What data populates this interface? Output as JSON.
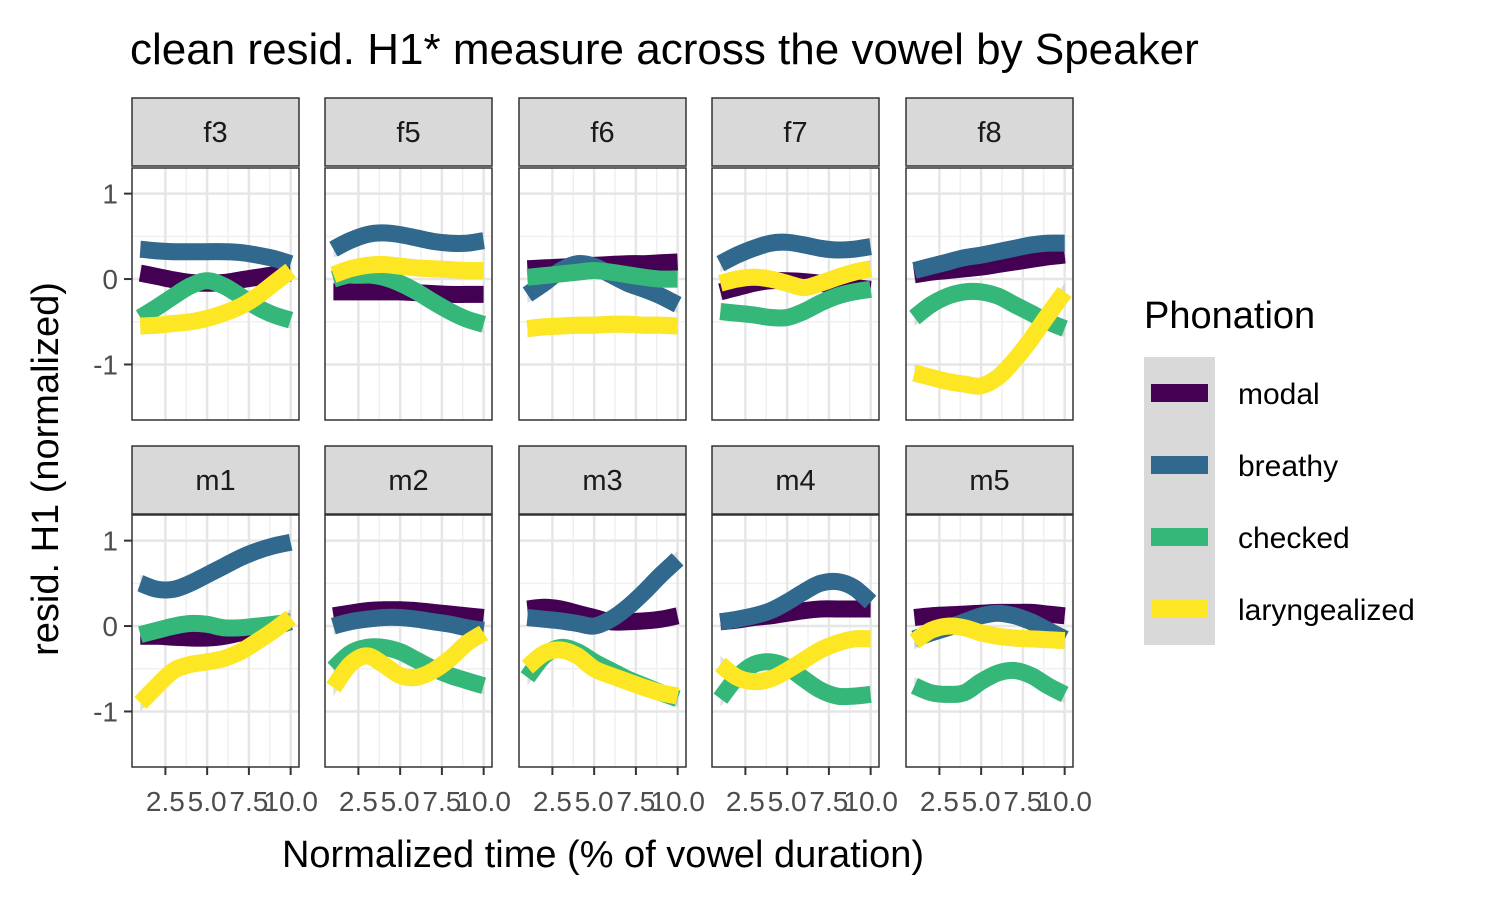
{
  "chart_data": {
    "type": "line",
    "title": "clean resid. H1* measure across the vowel by Speaker",
    "xlabel": "Normalized time (% of vowel duration)",
    "ylabel": "resid. H1 (normalized)",
    "xlim": [
      0.5,
      10.5
    ],
    "ylim": [
      -1.65,
      1.3
    ],
    "x_ticks": [
      2.5,
      5.0,
      7.5,
      10.0
    ],
    "x_tick_labels": [
      "2.5",
      "5.0",
      "7.5",
      "10.0"
    ],
    "y_ticks": [
      -1,
      0,
      1
    ],
    "y_tick_labels": [
      "-1",
      "0",
      "1"
    ],
    "grid": true,
    "legend": {
      "title": "Phonation",
      "position": "right",
      "entries": [
        {
          "key": "modal",
          "label": "modal",
          "color": "#440154"
        },
        {
          "key": "breathy",
          "label": "breathy",
          "color": "#31688E"
        },
        {
          "key": "checked",
          "label": "checked",
          "color": "#35B779"
        },
        {
          "key": "laryngealized",
          "label": "laryngealized",
          "color": "#FDE725"
        }
      ]
    },
    "x": [
      1,
      2,
      3,
      4,
      5,
      6,
      7,
      8,
      9,
      10
    ],
    "panels": [
      {
        "speaker": "f3",
        "series": [
          {
            "name": "modal",
            "values": [
              0.07,
              0.03,
              -0.01,
              -0.04,
              -0.05,
              -0.04,
              -0.01,
              0.02,
              0.05,
              0.07
            ]
          },
          {
            "name": "breathy",
            "values": [
              0.35,
              0.33,
              0.32,
              0.32,
              0.32,
              0.32,
              0.31,
              0.28,
              0.24,
              0.18
            ]
          },
          {
            "name": "checked",
            "values": [
              -0.45,
              -0.33,
              -0.2,
              -0.08,
              -0.02,
              -0.08,
              -0.2,
              -0.33,
              -0.42,
              -0.48
            ]
          },
          {
            "name": "laryngealized",
            "values": [
              -0.55,
              -0.54,
              -0.52,
              -0.5,
              -0.46,
              -0.4,
              -0.32,
              -0.2,
              -0.05,
              0.1
            ]
          }
        ]
      },
      {
        "speaker": "f5",
        "series": [
          {
            "name": "modal",
            "values": [
              -0.15,
              -0.15,
              -0.15,
              -0.15,
              -0.15,
              -0.16,
              -0.17,
              -0.18,
              -0.18,
              -0.18
            ]
          },
          {
            "name": "breathy",
            "values": [
              0.35,
              0.45,
              0.52,
              0.54,
              0.52,
              0.48,
              0.44,
              0.42,
              0.42,
              0.45
            ]
          },
          {
            "name": "checked",
            "values": [
              0.0,
              0.05,
              0.05,
              0.02,
              -0.05,
              -0.15,
              -0.27,
              -0.38,
              -0.47,
              -0.53
            ]
          },
          {
            "name": "laryngealized",
            "values": [
              0.05,
              0.12,
              0.16,
              0.17,
              0.15,
              0.13,
              0.12,
              0.11,
              0.1,
              0.1
            ]
          }
        ]
      },
      {
        "speaker": "f6",
        "series": [
          {
            "name": "modal",
            "values": [
              0.12,
              0.13,
              0.14,
              0.15,
              0.16,
              0.17,
              0.18,
              0.18,
              0.19,
              0.2
            ]
          },
          {
            "name": "breathy",
            "values": [
              -0.18,
              -0.05,
              0.1,
              0.18,
              0.15,
              0.05,
              -0.05,
              -0.12,
              -0.2,
              -0.3
            ]
          },
          {
            "name": "checked",
            "values": [
              0.02,
              0.04,
              0.06,
              0.08,
              0.1,
              0.08,
              0.05,
              0.02,
              0.0,
              0.0
            ]
          },
          {
            "name": "laryngealized",
            "values": [
              -0.58,
              -0.56,
              -0.55,
              -0.54,
              -0.54,
              -0.53,
              -0.53,
              -0.54,
              -0.54,
              -0.55
            ]
          }
        ]
      },
      {
        "speaker": "f7",
        "series": [
          {
            "name": "modal",
            "values": [
              -0.15,
              -0.1,
              -0.05,
              -0.02,
              -0.02,
              -0.03,
              -0.05,
              -0.08,
              -0.1,
              -0.12
            ]
          },
          {
            "name": "breathy",
            "values": [
              0.18,
              0.28,
              0.36,
              0.42,
              0.43,
              0.4,
              0.36,
              0.34,
              0.35,
              0.38
            ]
          },
          {
            "name": "checked",
            "values": [
              -0.38,
              -0.4,
              -0.42,
              -0.45,
              -0.45,
              -0.38,
              -0.28,
              -0.2,
              -0.15,
              -0.12
            ]
          },
          {
            "name": "laryngealized",
            "values": [
              -0.05,
              0.0,
              0.02,
              0.0,
              -0.05,
              -0.1,
              -0.05,
              0.02,
              0.08,
              0.12
            ]
          }
        ]
      },
      {
        "speaker": "f8",
        "series": [
          {
            "name": "modal",
            "values": [
              0.05,
              0.08,
              0.1,
              0.12,
              0.14,
              0.17,
              0.2,
              0.23,
              0.26,
              0.28
            ]
          },
          {
            "name": "breathy",
            "values": [
              0.1,
              0.15,
              0.2,
              0.25,
              0.28,
              0.32,
              0.36,
              0.4,
              0.42,
              0.42
            ]
          },
          {
            "name": "checked",
            "values": [
              -0.45,
              -0.3,
              -0.2,
              -0.15,
              -0.15,
              -0.2,
              -0.3,
              -0.4,
              -0.5,
              -0.58
            ]
          },
          {
            "name": "laryngealized",
            "values": [
              -1.1,
              -1.15,
              -1.2,
              -1.23,
              -1.25,
              -1.15,
              -0.95,
              -0.7,
              -0.42,
              -0.15
            ]
          }
        ]
      },
      {
        "speaker": "m1",
        "series": [
          {
            "name": "modal",
            "values": [
              -0.12,
              -0.12,
              -0.13,
              -0.14,
              -0.14,
              -0.12,
              -0.08,
              -0.04,
              0.0,
              0.05
            ]
          },
          {
            "name": "breathy",
            "values": [
              0.5,
              0.43,
              0.43,
              0.5,
              0.6,
              0.7,
              0.8,
              0.88,
              0.94,
              0.98
            ]
          },
          {
            "name": "checked",
            "values": [
              -0.1,
              -0.05,
              0.0,
              0.03,
              0.02,
              -0.02,
              -0.02,
              0.0,
              0.02,
              0.05
            ]
          },
          {
            "name": "laryngealized",
            "values": [
              -0.9,
              -0.7,
              -0.52,
              -0.45,
              -0.42,
              -0.38,
              -0.3,
              -0.18,
              -0.05,
              0.1
            ]
          }
        ]
      },
      {
        "speaker": "m2",
        "series": [
          {
            "name": "modal",
            "values": [
              0.12,
              0.15,
              0.18,
              0.19,
              0.19,
              0.18,
              0.16,
              0.14,
              0.12,
              0.1
            ]
          },
          {
            "name": "breathy",
            "values": [
              0.0,
              0.05,
              0.08,
              0.1,
              0.1,
              0.08,
              0.05,
              0.02,
              -0.02,
              -0.05
            ]
          },
          {
            "name": "checked",
            "values": [
              -0.5,
              -0.32,
              -0.25,
              -0.25,
              -0.3,
              -0.4,
              -0.5,
              -0.58,
              -0.64,
              -0.7
            ]
          },
          {
            "name": "laryngealized",
            "values": [
              -0.72,
              -0.45,
              -0.35,
              -0.45,
              -0.58,
              -0.6,
              -0.52,
              -0.38,
              -0.2,
              -0.08
            ]
          }
        ]
      },
      {
        "speaker": "m3",
        "series": [
          {
            "name": "modal",
            "values": [
              0.2,
              0.22,
              0.2,
              0.15,
              0.1,
              0.05,
              0.05,
              0.06,
              0.08,
              0.12
            ]
          },
          {
            "name": "breathy",
            "values": [
              0.1,
              0.08,
              0.06,
              0.03,
              0.0,
              0.08,
              0.22,
              0.4,
              0.6,
              0.78
            ]
          },
          {
            "name": "checked",
            "values": [
              -0.6,
              -0.35,
              -0.25,
              -0.3,
              -0.42,
              -0.52,
              -0.62,
              -0.7,
              -0.78,
              -0.85
            ]
          },
          {
            "name": "laryngealized",
            "values": [
              -0.48,
              -0.32,
              -0.28,
              -0.35,
              -0.5,
              -0.58,
              -0.65,
              -0.72,
              -0.78,
              -0.82
            ]
          }
        ]
      },
      {
        "speaker": "m4",
        "series": [
          {
            "name": "modal",
            "values": [
              0.05,
              0.07,
              0.1,
              0.12,
              0.15,
              0.18,
              0.2,
              0.2,
              0.2,
              0.2
            ]
          },
          {
            "name": "breathy",
            "values": [
              0.05,
              0.08,
              0.12,
              0.18,
              0.28,
              0.4,
              0.5,
              0.52,
              0.45,
              0.28
            ]
          },
          {
            "name": "checked",
            "values": [
              -0.85,
              -0.6,
              -0.45,
              -0.42,
              -0.48,
              -0.62,
              -0.75,
              -0.82,
              -0.82,
              -0.8
            ]
          },
          {
            "name": "laryngealized",
            "values": [
              -0.45,
              -0.6,
              -0.65,
              -0.62,
              -0.52,
              -0.4,
              -0.28,
              -0.2,
              -0.15,
              -0.15
            ]
          }
        ]
      },
      {
        "speaker": "m5",
        "series": [
          {
            "name": "modal",
            "values": [
              0.1,
              0.12,
              0.13,
              0.14,
              0.15,
              0.16,
              0.16,
              0.16,
              0.14,
              0.12
            ]
          },
          {
            "name": "breathy",
            "values": [
              -0.15,
              -0.08,
              -0.02,
              0.05,
              0.12,
              0.15,
              0.12,
              0.05,
              -0.05,
              -0.15
            ]
          },
          {
            "name": "checked",
            "values": [
              -0.7,
              -0.78,
              -0.8,
              -0.78,
              -0.65,
              -0.55,
              -0.52,
              -0.58,
              -0.7,
              -0.8
            ]
          },
          {
            "name": "laryngealized",
            "values": [
              -0.18,
              -0.05,
              0.0,
              -0.02,
              -0.08,
              -0.12,
              -0.14,
              -0.15,
              -0.16,
              -0.17
            ]
          }
        ]
      }
    ]
  }
}
